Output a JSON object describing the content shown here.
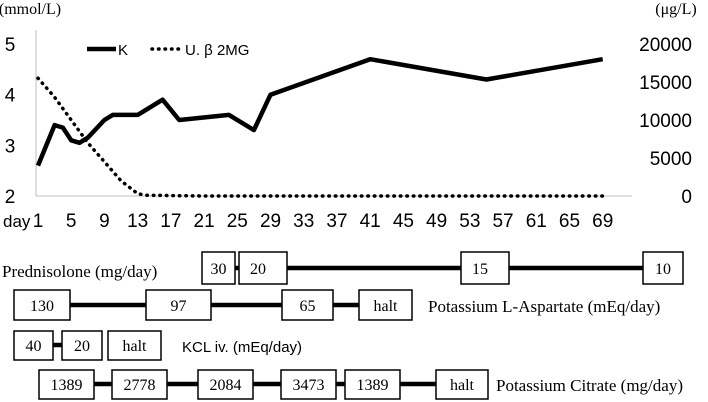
{
  "chart_data": {
    "type": "line",
    "left_axis": {
      "unit": "(mmol/L)",
      "ylim": [
        2,
        5
      ],
      "ticks": [
        "2",
        "3",
        "4",
        "5"
      ]
    },
    "right_axis": {
      "unit": "(μg/L)",
      "ylim": [
        0,
        20000
      ],
      "ticks": [
        "0",
        "5000",
        "10000",
        "15000",
        "20000"
      ]
    },
    "x_axis": {
      "prefix": "day",
      "xlim": [
        1,
        70
      ],
      "ticks": [
        "1",
        "5",
        "9",
        "13",
        "17",
        "21",
        "25",
        "29",
        "33",
        "37",
        "41",
        "45",
        "49",
        "53",
        "57",
        "61",
        "65",
        "69"
      ]
    },
    "grid": false,
    "legend_position": "top-left",
    "series": [
      {
        "name": "K",
        "axis": "left",
        "style": "solid",
        "color": "#000000",
        "x": [
          1,
          3,
          4,
          5,
          6,
          7,
          9,
          10,
          13,
          16,
          18,
          24,
          27,
          29,
          41,
          55,
          69
        ],
        "y": [
          2.6,
          3.4,
          3.35,
          3.1,
          3.05,
          3.15,
          3.5,
          3.6,
          3.6,
          3.9,
          3.5,
          3.6,
          3.3,
          4.0,
          4.7,
          4.3,
          4.7
        ]
      },
      {
        "name": "U. β 2MG",
        "axis": "right",
        "style": "dotted",
        "color": "#000000",
        "x": [
          1,
          3,
          5,
          7,
          9,
          11,
          13,
          14,
          17,
          21,
          25,
          29,
          33,
          41,
          55,
          69
        ],
        "y": [
          15500,
          13000,
          10000,
          7000,
          4500,
          2000,
          300,
          100,
          50,
          0,
          0,
          0,
          0,
          0,
          0,
          0
        ]
      }
    ]
  },
  "treatment": {
    "prednisolone": {
      "label": "Prednisolone (mg/day)",
      "values": [
        "30",
        "20",
        "15",
        "10"
      ]
    },
    "aspartate": {
      "label": "Potassium L-Aspartate (mEq/day)",
      "values": [
        "130",
        "97",
        "65",
        "halt"
      ]
    },
    "kcl": {
      "label": "KCL iv. (mEq/day)",
      "values": [
        "40",
        "20",
        "halt"
      ]
    },
    "citrate": {
      "label": "Potassium Citrate (mg/day)",
      "values": [
        "1389",
        "2778",
        "2084",
        "3473",
        "1389",
        "halt"
      ]
    }
  }
}
